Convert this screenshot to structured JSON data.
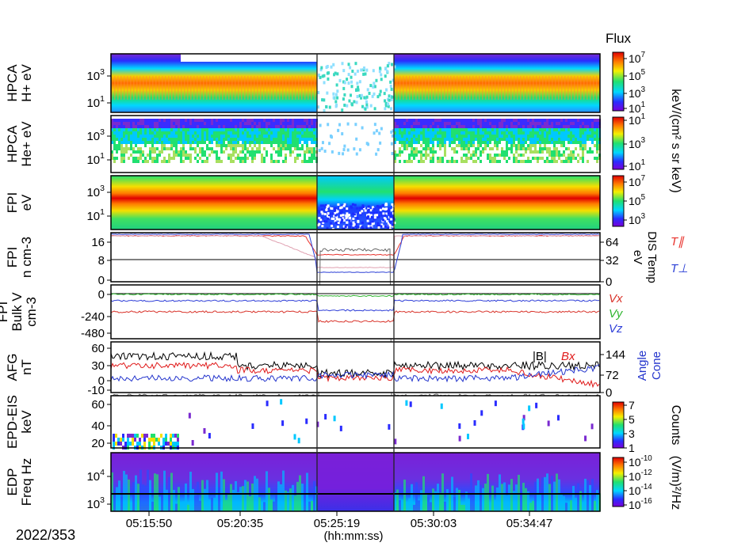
{
  "date_label": "2022/353",
  "x_axis": {
    "unit_label": "(hh:mm:ss)",
    "ticks": [
      "05:15:50",
      "05:20:35",
      "05:25:19",
      "05:30:03",
      "05:34:47"
    ]
  },
  "colors": {
    "parallel": "#e8322c",
    "perp": "#2b3fd6",
    "vx": "#d9342b",
    "vy": "#2fb52f",
    "vz": "#2f3fd8",
    "B": "#000000",
    "Bx": "#e01b1b",
    "cone": "#2233cc"
  },
  "chart_data": [
    {
      "type": "heatmap",
      "ylabel": [
        "HPCA",
        "H+ eV"
      ],
      "ylabel_sup": "+",
      "yticks": [
        {
          "base": "10",
          "exp": "3"
        },
        {
          "base": "10",
          "exp": "1"
        }
      ],
      "colorbar": {
        "title": "Flux",
        "ticks": [
          {
            "base": "10",
            "exp": "7"
          },
          {
            "base": "10",
            "exp": "5"
          },
          {
            "base": "10",
            "exp": "3"
          },
          {
            "base": "10",
            "exp": "1"
          }
        ]
      }
    },
    {
      "type": "heatmap",
      "ylabel": [
        "HPCA",
        "He+ eV"
      ],
      "yticks": [
        {
          "base": "10",
          "exp": "3"
        },
        {
          "base": "10",
          "exp": "1"
        }
      ],
      "colorbar": {
        "ticks": [
          {
            "base": "10",
            "exp": "1"
          },
          {
            "base": "10",
            "exp": "3"
          },
          {
            "base": "10",
            "exp": "1"
          }
        ]
      }
    },
    {
      "type": "heatmap",
      "ylabel": [
        "FPI",
        "eV"
      ],
      "yticks": [
        {
          "base": "10",
          "exp": "3"
        },
        {
          "base": "10",
          "exp": "1"
        }
      ],
      "colorbar": {
        "ticks": [
          {
            "base": "10",
            "exp": "7"
          },
          {
            "base": "10",
            "exp": "5"
          },
          {
            "base": "10",
            "exp": "3"
          }
        ]
      }
    },
    {
      "type": "line",
      "ylabel": [
        "FPI",
        "n cm-3"
      ],
      "yticks": [
        "16",
        "8",
        "0"
      ],
      "yticks_right": [
        "64",
        "32",
        "0"
      ],
      "ylabel_right": [
        "DIS Temp",
        "eV"
      ],
      "legend": [
        "T∥",
        "T⊥"
      ]
    },
    {
      "type": "line",
      "ylabel": [
        "FPI",
        "Bulk V",
        "cm-3"
      ],
      "yticks": [
        "0",
        "-240",
        "-480"
      ],
      "legend": [
        "Vx",
        "Vy",
        "Vz"
      ]
    },
    {
      "type": "line",
      "ylabel": [
        "AFG",
        "nT"
      ],
      "yticks": [
        "60",
        "30",
        "0",
        "-10"
      ],
      "yticks_right": [
        "144",
        "72",
        "0"
      ],
      "ylabel_right": [
        "Cone",
        "Angle"
      ],
      "legend": [
        "|B|",
        "Bx"
      ]
    },
    {
      "type": "heatmap",
      "ylabel": [
        "EPD-EIS",
        "keV"
      ],
      "yticks": [
        "60",
        "40",
        "20"
      ],
      "colorbar": {
        "title": "Counts",
        "ticks": [
          "7",
          "5",
          "3",
          "1"
        ]
      }
    },
    {
      "type": "heatmap",
      "ylabel": [
        "EDP",
        "Freq Hz"
      ],
      "yticks": [
        {
          "base": "10",
          "exp": "4"
        },
        {
          "base": "10",
          "exp": "3"
        }
      ],
      "colorbar": {
        "title": "(V/m)²/Hz",
        "ticks": [
          {
            "base": "10",
            "exp": "-10"
          },
          {
            "base": "10",
            "exp": "-12"
          },
          {
            "base": "10",
            "exp": "-14"
          },
          {
            "base": "10",
            "exp": "-16"
          }
        ]
      }
    }
  ],
  "cb_unit_hpca": "keV/(cm² s sr keV)"
}
